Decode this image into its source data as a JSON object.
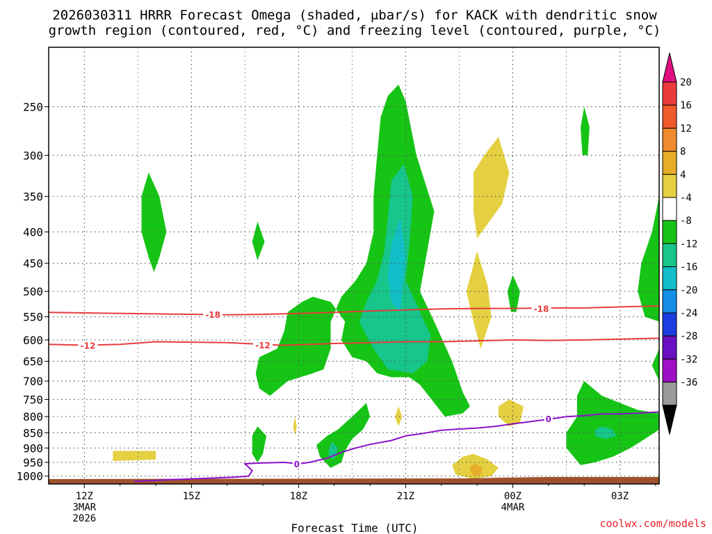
{
  "chart_data": {
    "type": "heatmap",
    "title_line1": "2026030311 HRRR Forecast Omega (shaded, μbar/s) for KACK with dendritic snow",
    "title_line2": "growth region (contoured, red, °C) and freezing level (contoured, purple, °C)",
    "xlabel": "Forecast Time (UTC)",
    "credit": "coolwx.com/models",
    "x_ticks": [
      {
        "hour": 12,
        "label": "12Z",
        "sub1": "3MAR",
        "sub2": "2026"
      },
      {
        "hour": 15,
        "label": "15Z",
        "sub1": "",
        "sub2": ""
      },
      {
        "hour": 18,
        "label": "18Z",
        "sub1": "",
        "sub2": ""
      },
      {
        "hour": 21,
        "label": "21Z",
        "sub1": "",
        "sub2": ""
      },
      {
        "hour": 24,
        "label": "00Z",
        "sub1": "4MAR",
        "sub2": ""
      },
      {
        "hour": 27,
        "label": "03Z",
        "sub1": "",
        "sub2": ""
      }
    ],
    "x_range_hours": [
      11,
      28.1
    ],
    "y_ticks_hpa": [
      250,
      300,
      350,
      400,
      450,
      500,
      550,
      600,
      650,
      700,
      750,
      800,
      850,
      900,
      950,
      1000
    ],
    "y_range_hpa": [
      200,
      1030
    ],
    "colorbar": {
      "levels": [
        20,
        16,
        12,
        8,
        4,
        -4,
        -8,
        -12,
        -16,
        -20,
        -24,
        -28,
        -32,
        -36
      ],
      "colors": [
        "#ea3c3c",
        "#ef5a2a",
        "#ef8a2e",
        "#e6ae28",
        "#e4d040",
        "#ffffff",
        "#16c416",
        "#16c68a",
        "#12bec8",
        "#148ee6",
        "#1c3ee0",
        "#6a10c2",
        "#9e10c6",
        "#9a9a9a"
      ],
      "top_color": "#e0107e",
      "bottom_color": "#000000"
    },
    "contours": {
      "dendritic_minus18_label": "-18",
      "dendritic_minus12_label": "-12",
      "freezing_level_label": "0",
      "minus18_hpa": [
        [
          11,
          541
        ],
        [
          14,
          544
        ],
        [
          16,
          546
        ],
        [
          17,
          545
        ],
        [
          18,
          543
        ],
        [
          19,
          541
        ],
        [
          20,
          538
        ],
        [
          21,
          536
        ],
        [
          22,
          534
        ],
        [
          23,
          533
        ],
        [
          24,
          533
        ],
        [
          25,
          532
        ],
        [
          26,
          532
        ],
        [
          27,
          530
        ],
        [
          28.1,
          528
        ]
      ],
      "minus12_hpa": [
        [
          11,
          610
        ],
        [
          12,
          612
        ],
        [
          13,
          610
        ],
        [
          14,
          604
        ],
        [
          15,
          605
        ],
        [
          16,
          606
        ],
        [
          17,
          610
        ],
        [
          17.5,
          612
        ],
        [
          18,
          611
        ],
        [
          19,
          608
        ],
        [
          20,
          606
        ],
        [
          21,
          604
        ],
        [
          22,
          604
        ],
        [
          23,
          602
        ],
        [
          24,
          600
        ],
        [
          25,
          601
        ],
        [
          26,
          600
        ],
        [
          27,
          598
        ],
        [
          28.1,
          596
        ]
      ],
      "freezing_hpa": [
        [
          13.4,
          1020
        ],
        [
          14.5,
          1013
        ],
        [
          15.5,
          1008
        ],
        [
          16.2,
          1004
        ],
        [
          16.6,
          1000
        ],
        [
          16.7,
          980
        ],
        [
          16.5,
          955
        ],
        [
          17,
          952
        ],
        [
          17.6,
          950
        ],
        [
          18,
          955
        ],
        [
          18.3,
          950
        ],
        [
          18.8,
          935
        ],
        [
          19.2,
          915
        ],
        [
          19.6,
          900
        ],
        [
          20,
          888
        ],
        [
          20.6,
          875
        ],
        [
          21,
          860
        ],
        [
          21.5,
          852
        ],
        [
          22,
          842
        ],
        [
          22.5,
          838
        ],
        [
          23,
          835
        ],
        [
          23.5,
          830
        ],
        [
          24,
          822
        ],
        [
          24.5,
          815
        ],
        [
          25,
          808
        ],
        [
          25.5,
          800
        ],
        [
          26,
          797
        ],
        [
          26.5,
          792
        ],
        [
          27,
          792
        ],
        [
          27.5,
          790
        ],
        [
          28.1,
          786
        ]
      ]
    },
    "omega_regions": [
      {
        "band": "-8",
        "poly": [
          [
            13.8,
            320
          ],
          [
            14.1,
            350
          ],
          [
            14.3,
            400
          ],
          [
            14.1,
            440
          ],
          [
            13.95,
            465
          ],
          [
            13.8,
            440
          ],
          [
            13.6,
            400
          ],
          [
            13.6,
            350
          ]
        ]
      },
      {
        "band": "-8",
        "poly": [
          [
            16.85,
            385
          ],
          [
            17.05,
            415
          ],
          [
            16.85,
            445
          ],
          [
            16.7,
            415
          ]
        ]
      },
      {
        "band": "-8",
        "poly": [
          [
            20.8,
            230
          ],
          [
            21,
            245
          ],
          [
            21.3,
            300
          ],
          [
            21.8,
            370
          ],
          [
            21.6,
            430
          ],
          [
            21.4,
            500
          ],
          [
            21.8,
            560
          ],
          [
            22.3,
            650
          ],
          [
            22.6,
            730
          ],
          [
            22.8,
            770
          ],
          [
            22.6,
            790
          ],
          [
            22.1,
            800
          ],
          [
            21.8,
            760
          ],
          [
            21.4,
            710
          ],
          [
            21.1,
            690
          ],
          [
            20.6,
            690
          ],
          [
            20.2,
            680
          ],
          [
            19.9,
            650
          ],
          [
            19.5,
            640
          ],
          [
            19.2,
            600
          ],
          [
            19.3,
            560
          ],
          [
            18.9,
            520
          ],
          [
            18.4,
            510
          ],
          [
            18.1,
            520
          ],
          [
            17.7,
            540
          ],
          [
            17.6,
            580
          ],
          [
            17.4,
            620
          ],
          [
            16.9,
            640
          ],
          [
            16.8,
            680
          ],
          [
            16.9,
            720
          ],
          [
            17.2,
            740
          ],
          [
            17.7,
            700
          ],
          [
            18.4,
            680
          ],
          [
            18.7,
            670
          ],
          [
            18.9,
            620
          ],
          [
            18.9,
            560
          ],
          [
            19.2,
            510
          ],
          [
            19.6,
            480
          ],
          [
            19.9,
            450
          ],
          [
            20.1,
            400
          ],
          [
            20.1,
            350
          ],
          [
            20.2,
            300
          ],
          [
            20.3,
            260
          ],
          [
            20.5,
            240
          ]
        ]
      },
      {
        "band": "-12",
        "poly": [
          [
            20.95,
            310
          ],
          [
            21.2,
            350
          ],
          [
            21.1,
            420
          ],
          [
            21.0,
            480
          ],
          [
            21.4,
            540
          ],
          [
            21.7,
            590
          ],
          [
            21.6,
            650
          ],
          [
            21.2,
            680
          ],
          [
            20.5,
            670
          ],
          [
            20.1,
            620
          ],
          [
            19.9,
            590
          ],
          [
            19.7,
            560
          ],
          [
            19.9,
            520
          ],
          [
            20.2,
            480
          ],
          [
            20.4,
            430
          ],
          [
            20.5,
            380
          ],
          [
            20.6,
            330
          ]
        ]
      },
      {
        "band": "-16",
        "poly": [
          [
            20.85,
            380
          ],
          [
            21.0,
            440
          ],
          [
            20.9,
            500
          ],
          [
            20.85,
            540
          ],
          [
            20.6,
            520
          ],
          [
            20.5,
            470
          ],
          [
            20.6,
            420
          ]
        ]
      },
      {
        "band": "-8",
        "poly": [
          [
            24.0,
            470
          ],
          [
            24.2,
            500
          ],
          [
            24.1,
            540
          ],
          [
            23.95,
            540
          ],
          [
            23.85,
            500
          ]
        ]
      },
      {
        "band": "-8",
        "poly": [
          [
            28.1,
            350
          ],
          [
            27.9,
            400
          ],
          [
            27.6,
            450
          ],
          [
            27.5,
            500
          ],
          [
            27.7,
            550
          ],
          [
            28.1,
            560
          ]
        ]
      },
      {
        "band": "-8",
        "poly": [
          [
            28.1,
            620
          ],
          [
            27.9,
            660
          ],
          [
            28.1,
            700
          ]
        ]
      },
      {
        "band": "-8",
        "poly": [
          [
            26.0,
            250
          ],
          [
            26.15,
            270
          ],
          [
            26.1,
            300
          ],
          [
            25.95,
            300
          ],
          [
            25.9,
            270
          ]
        ]
      },
      {
        "band": "-8",
        "poly": [
          [
            16.85,
            830
          ],
          [
            17.1,
            860
          ],
          [
            17.0,
            920
          ],
          [
            16.85,
            950
          ],
          [
            16.7,
            920
          ],
          [
            16.7,
            860
          ]
        ]
      },
      {
        "band": "-8",
        "poly": [
          [
            19.9,
            760
          ],
          [
            20.0,
            800
          ],
          [
            19.8,
            840
          ],
          [
            19.5,
            870
          ],
          [
            19.3,
            910
          ],
          [
            19.2,
            950
          ],
          [
            18.9,
            970
          ],
          [
            18.6,
            930
          ],
          [
            18.5,
            890
          ],
          [
            18.8,
            860
          ],
          [
            19.1,
            840
          ],
          [
            19.6,
            790
          ]
        ]
      },
      {
        "band": "-12",
        "poly": [
          [
            18.95,
            880
          ],
          [
            19.1,
            900
          ],
          [
            19.0,
            940
          ],
          [
            18.85,
            930
          ],
          [
            18.85,
            900
          ]
        ]
      },
      {
        "band": "-8",
        "poly": [
          [
            26.0,
            700
          ],
          [
            26.5,
            740
          ],
          [
            27.0,
            760
          ],
          [
            27.5,
            780
          ],
          [
            28.1,
            790
          ],
          [
            28.1,
            840
          ],
          [
            27.7,
            870
          ],
          [
            27.3,
            900
          ],
          [
            26.8,
            930
          ],
          [
            26.3,
            950
          ],
          [
            25.9,
            960
          ],
          [
            25.5,
            900
          ],
          [
            25.5,
            850
          ],
          [
            25.8,
            800
          ],
          [
            25.8,
            740
          ]
        ]
      },
      {
        "band": "-12",
        "poly": [
          [
            26.5,
            830
          ],
          [
            26.8,
            840
          ],
          [
            26.9,
            860
          ],
          [
            26.6,
            870
          ],
          [
            26.3,
            860
          ],
          [
            26.3,
            840
          ]
        ]
      },
      {
        "band": "4",
        "poly": [
          [
            23.6,
            280
          ],
          [
            23.9,
            320
          ],
          [
            23.7,
            360
          ],
          [
            23.0,
            410
          ],
          [
            22.9,
            370
          ],
          [
            22.9,
            320
          ],
          [
            23.2,
            300
          ]
        ]
      },
      {
        "band": "4",
        "poly": [
          [
            23.0,
            430
          ],
          [
            23.3,
            490
          ],
          [
            23.4,
            550
          ],
          [
            23.1,
            620
          ],
          [
            22.9,
            560
          ],
          [
            22.7,
            500
          ]
        ]
      },
      {
        "band": "4",
        "poly": [
          [
            23.9,
            750
          ],
          [
            24.3,
            770
          ],
          [
            24.2,
            820
          ],
          [
            23.9,
            830
          ],
          [
            23.6,
            800
          ],
          [
            23.6,
            770
          ]
        ]
      },
      {
        "band": "4",
        "poly": [
          [
            20.8,
            770
          ],
          [
            20.9,
            800
          ],
          [
            20.8,
            830
          ],
          [
            20.7,
            800
          ]
        ]
      },
      {
        "band": "4",
        "poly": [
          [
            17.9,
            800
          ],
          [
            17.95,
            830
          ],
          [
            17.9,
            860
          ],
          [
            17.85,
            830
          ]
        ]
      },
      {
        "band": "4",
        "poly": [
          [
            12.8,
            910
          ],
          [
            14.0,
            910
          ],
          [
            14.0,
            940
          ],
          [
            12.8,
            945
          ]
        ]
      },
      {
        "band": "4",
        "poly": [
          [
            22.9,
            920
          ],
          [
            23.3,
            940
          ],
          [
            23.6,
            970
          ],
          [
            23.4,
            1000
          ],
          [
            22.9,
            1010
          ],
          [
            22.4,
            995
          ],
          [
            22.3,
            960
          ],
          [
            22.6,
            930
          ]
        ]
      },
      {
        "band": "8",
        "poly": [
          [
            22.95,
            955
          ],
          [
            23.15,
            970
          ],
          [
            23.1,
            995
          ],
          [
            22.9,
            1000
          ],
          [
            22.8,
            980
          ],
          [
            22.8,
            965
          ]
        ]
      }
    ]
  }
}
